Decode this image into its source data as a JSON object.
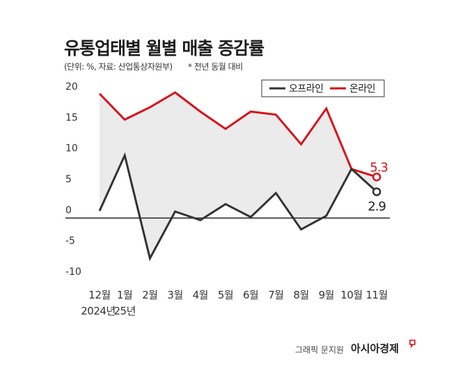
{
  "header": {
    "title": "유통업태별 월별 매출 증감률",
    "unit_note": "(단위: %, 자료: 산업통상자원부)",
    "basis_note": "* 전년 동월 대비"
  },
  "footer": {
    "credit": "그래픽 문지원",
    "brand": "아시아경제"
  },
  "colors": {
    "offline": "#333333",
    "online": "#d7121b",
    "fill": "#ebebeb",
    "brand_accent": "#d7121b"
  },
  "chart_data": {
    "type": "line",
    "categories": [
      "12월",
      "1월",
      "2월",
      "3월",
      "4월",
      "5월",
      "6월",
      "7월",
      "8월",
      "9월",
      "10월",
      "11월"
    ],
    "year_labels": [
      "2024년",
      "25년"
    ],
    "series": [
      {
        "name": "오프라인",
        "values": [
          -0.2,
          8.8,
          -7.9,
          -0.3,
          -1.7,
          0.9,
          -1.2,
          2.7,
          -3.2,
          -1.0,
          6.6,
          2.9
        ]
      },
      {
        "name": "온라인",
        "values": [
          18.8,
          14.6,
          16.6,
          19.0,
          15.9,
          13.1,
          15.9,
          15.4,
          10.6,
          16.4,
          6.6,
          5.3
        ]
      }
    ],
    "end_labels": [
      "2.9",
      "5.3"
    ],
    "yticks": [
      20,
      15,
      10,
      5,
      0,
      -5,
      -10
    ],
    "ylim": [
      -10,
      20
    ],
    "legend": "top-right",
    "shaded_between_series": true
  }
}
